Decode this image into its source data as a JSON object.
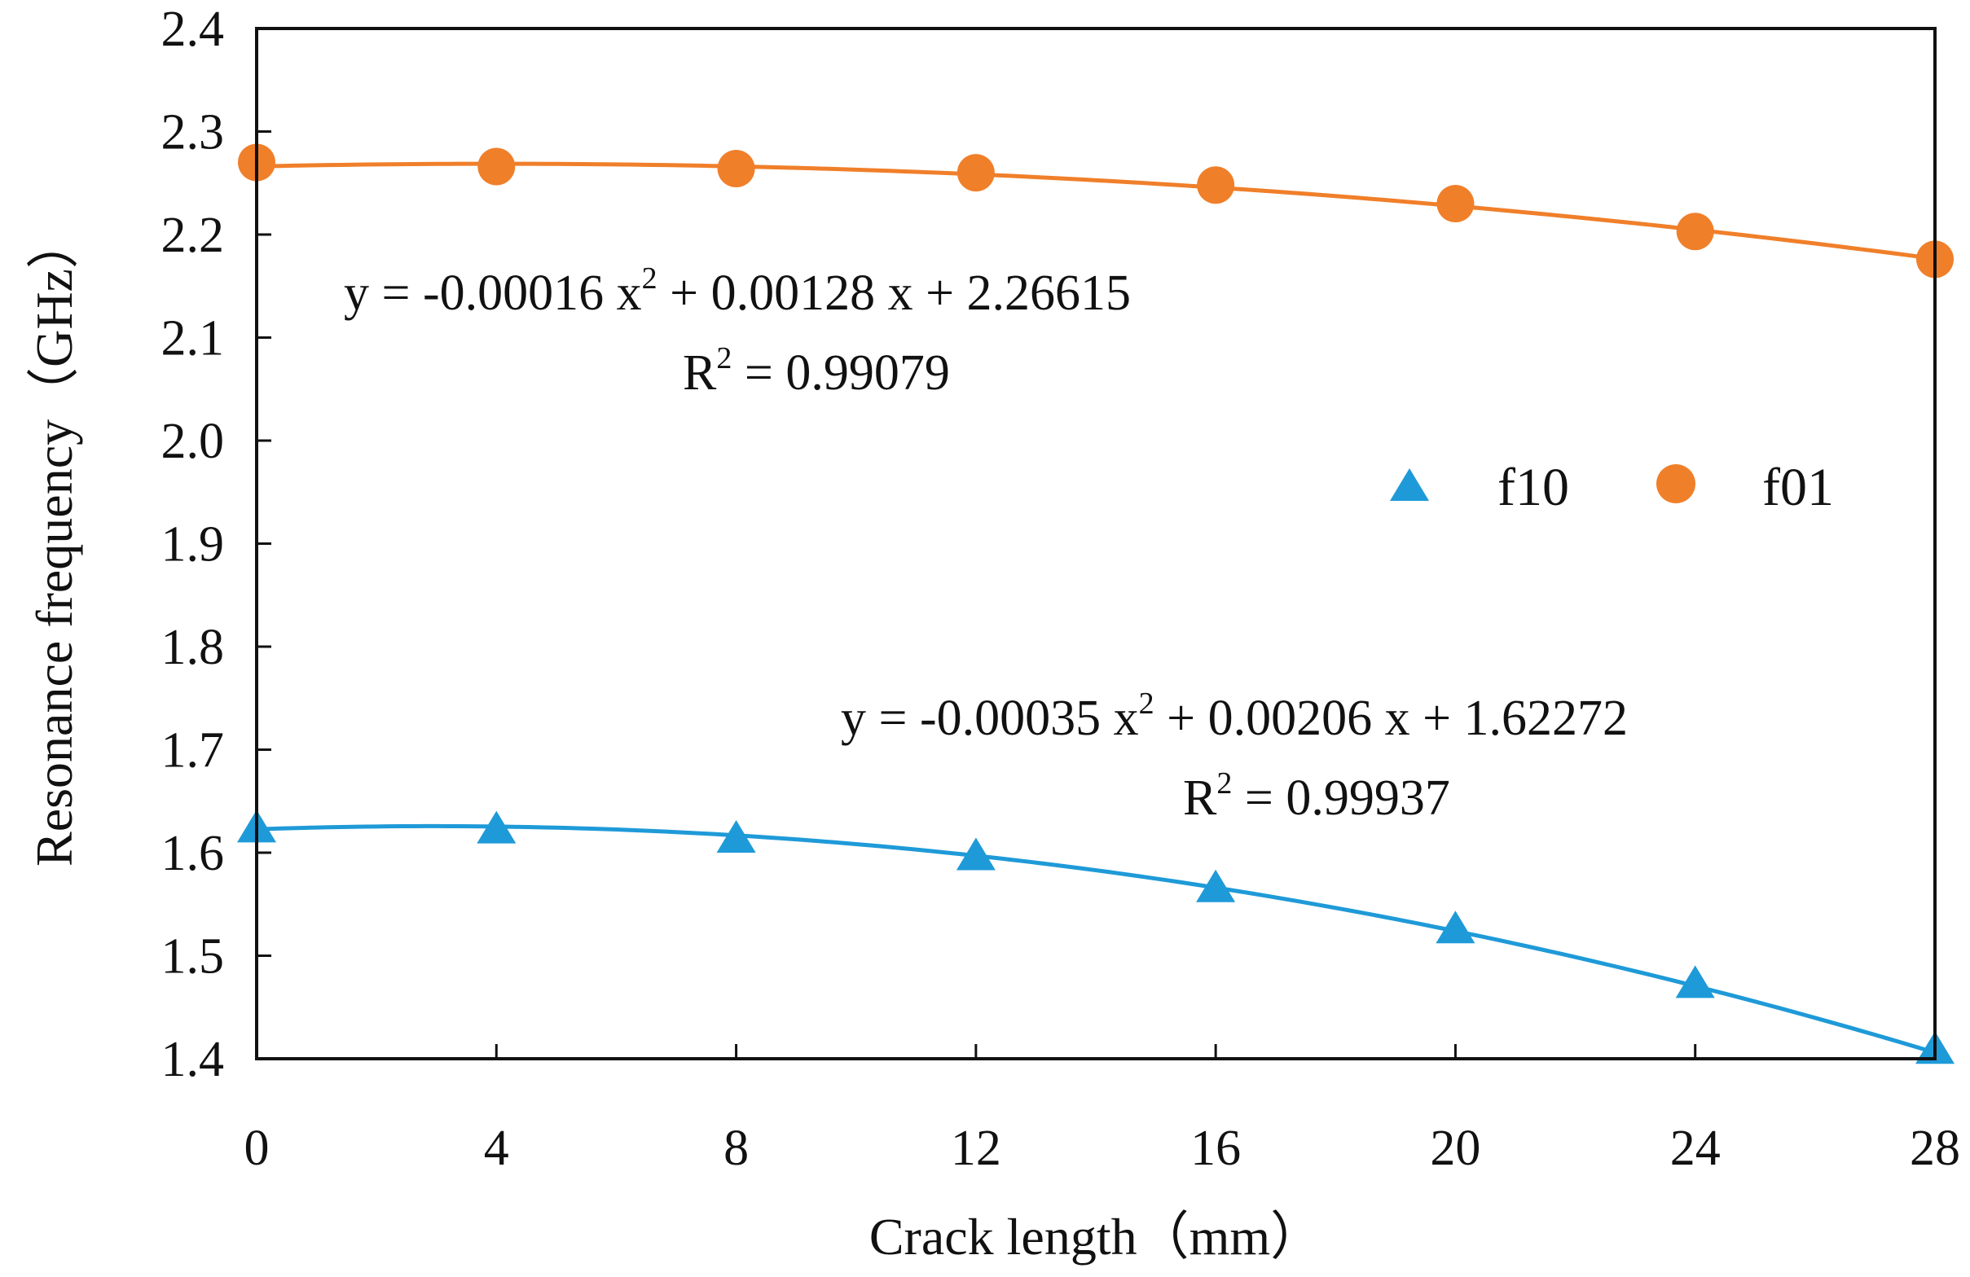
{
  "chart_data": {
    "type": "scatter",
    "title": "",
    "xlabel": "Crack length（mm）",
    "ylabel": "Resonance frequency（GHz）",
    "xlim": [
      0,
      28
    ],
    "ylim": [
      1.4,
      2.4
    ],
    "xticks": [
      "0",
      "4",
      "8",
      "12",
      "16",
      "20",
      "24",
      "28"
    ],
    "yticks": [
      "1.4",
      "1.5",
      "1.6",
      "1.7",
      "1.8",
      "1.9",
      "2.0",
      "2.1",
      "2.2",
      "2.3",
      "2.4"
    ],
    "x": [
      0,
      4,
      8,
      12,
      16,
      20,
      24,
      28
    ],
    "grid": false,
    "legend_position": "right",
    "series": [
      {
        "name": "f10",
        "marker": "triangle",
        "color": "#1f9ad8",
        "values": [
          1.622,
          1.621,
          1.612,
          1.595,
          1.564,
          1.524,
          1.471,
          1.407
        ],
        "trendline": {
          "type": "polynomial-2",
          "a": -0.00035,
          "b": 0.00206,
          "c": 1.62272,
          "equation_parts": [
            "y = -0.00035 x",
            "2",
            " + 0.00206 x + 1.62272"
          ],
          "r2_parts": [
            "R",
            "2",
            " = 0.99937"
          ]
        }
      },
      {
        "name": "f01",
        "marker": "circle",
        "color": "#f07f2a",
        "values": [
          2.27,
          2.266,
          2.264,
          2.26,
          2.248,
          2.23,
          2.203,
          2.176
        ],
        "trendline": {
          "type": "polynomial-2",
          "a": -0.00016,
          "b": 0.00128,
          "c": 2.26615,
          "equation_parts": [
            "y = -0.00016 x",
            "2",
            " + 0.00128 x + 2.26615"
          ],
          "r2_parts": [
            "R",
            "2",
            " = 0.99079"
          ]
        }
      }
    ]
  }
}
